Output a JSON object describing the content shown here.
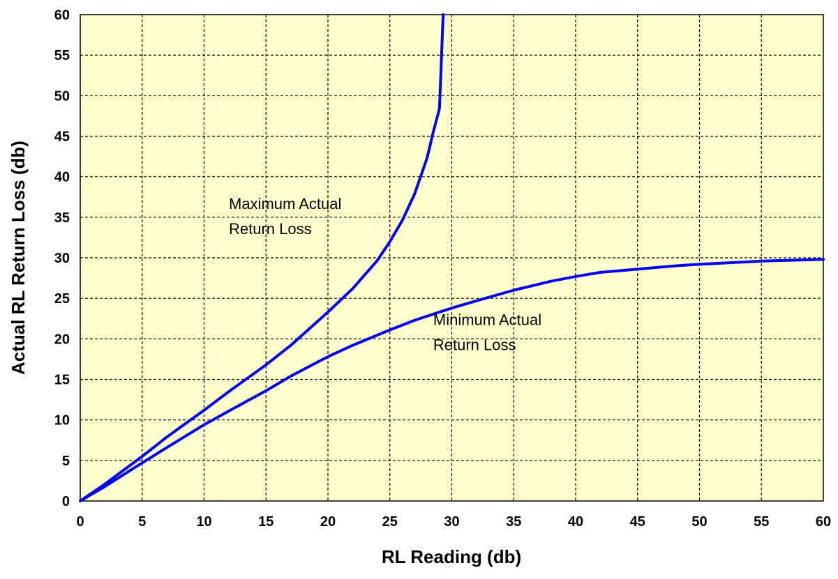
{
  "chart_data": {
    "type": "line",
    "title": "",
    "xlabel": "RL Reading (db)",
    "ylabel": "Actual RL Return Loss (db)",
    "xlim": [
      0,
      60
    ],
    "ylim": [
      0,
      60
    ],
    "xticks": [
      0,
      5,
      10,
      15,
      20,
      25,
      30,
      35,
      40,
      45,
      50,
      55,
      60
    ],
    "yticks": [
      0,
      5,
      10,
      15,
      20,
      25,
      30,
      35,
      40,
      45,
      50,
      55,
      60
    ],
    "grid": true,
    "plot_background": "#ffffcc",
    "line_color": "#0000ff",
    "series": [
      {
        "key": "max",
        "points": [
          [
            0,
            0
          ],
          [
            2,
            2.1
          ],
          [
            5,
            5.5
          ],
          [
            7,
            7.9
          ],
          [
            10,
            11.2
          ],
          [
            12,
            13.5
          ],
          [
            15,
            16.8
          ],
          [
            17,
            19.2
          ],
          [
            20,
            23.3
          ],
          [
            22,
            26.2
          ],
          [
            24,
            29.7
          ],
          [
            25,
            32
          ],
          [
            26,
            34.6
          ],
          [
            27,
            37.9
          ],
          [
            28,
            42.3
          ],
          [
            28.5,
            45.5
          ],
          [
            29,
            48.4
          ],
          [
            29.1,
            52
          ],
          [
            29.2,
            56
          ],
          [
            29.3,
            60
          ]
        ]
      },
      {
        "key": "min",
        "points": [
          [
            0,
            0
          ],
          [
            2,
            1.8
          ],
          [
            5,
            4.7
          ],
          [
            7,
            6.6
          ],
          [
            10,
            9.4
          ],
          [
            12,
            11.1
          ],
          [
            15,
            13.6
          ],
          [
            17,
            15.4
          ],
          [
            20,
            17.8
          ],
          [
            22,
            19.2
          ],
          [
            25,
            21.1
          ],
          [
            27,
            22.3
          ],
          [
            30,
            23.8
          ],
          [
            32,
            24.7
          ],
          [
            35,
            26
          ],
          [
            38,
            27.1
          ],
          [
            40,
            27.7
          ],
          [
            42,
            28.2
          ],
          [
            45,
            28.6
          ],
          [
            48,
            29
          ],
          [
            50,
            29.2
          ],
          [
            55,
            29.6
          ],
          [
            60,
            29.8
          ]
        ]
      }
    ],
    "annotations": [
      {
        "key": "max_label",
        "lines": [
          "Maximum Actual",
          "Return Loss"
        ],
        "x": 12,
        "y": 36
      },
      {
        "key": "min_label",
        "lines": [
          "Minimum Actual",
          "Return Loss"
        ],
        "x": 28.5,
        "y": 21.7
      }
    ]
  }
}
